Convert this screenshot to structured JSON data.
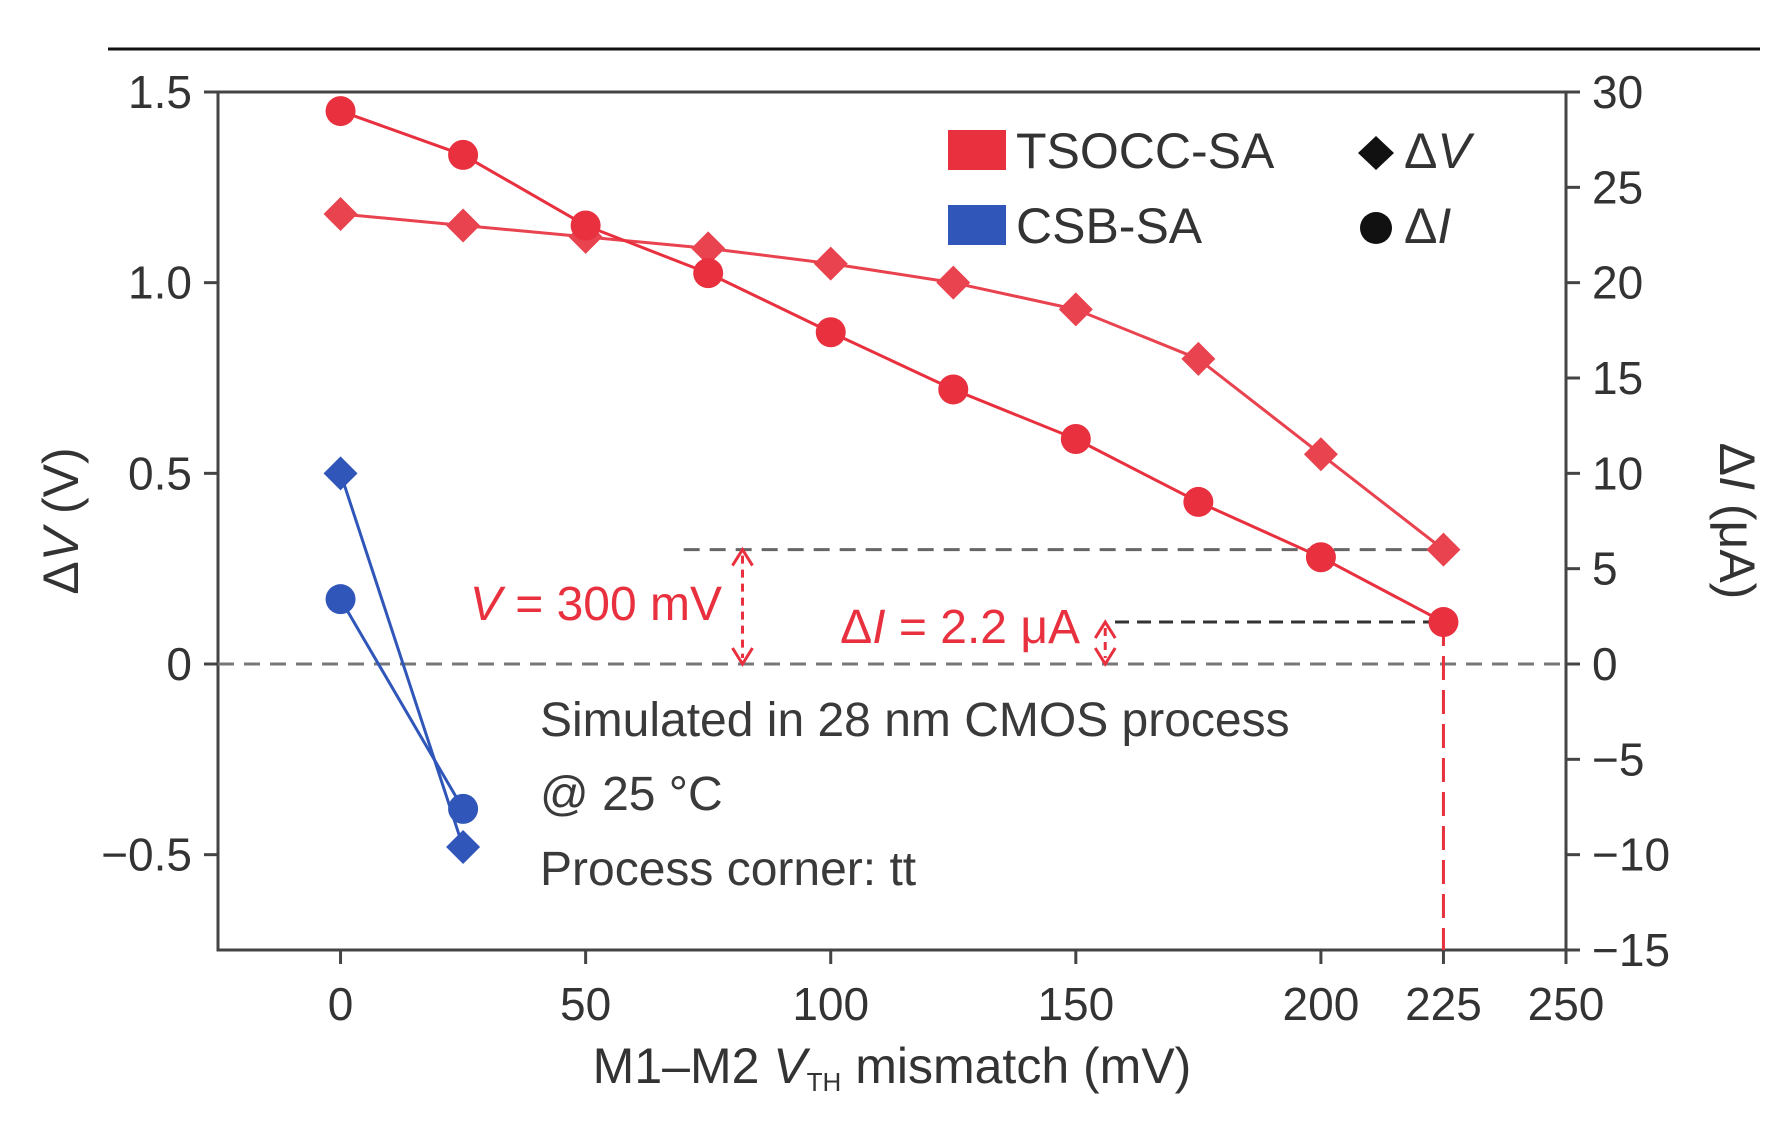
{
  "chart_data": {
    "type": "line",
    "xlabel": {
      "prefix": "M1–M2 ",
      "var": "V",
      "sub": "TH",
      "suffix": " mismatch (mV)"
    },
    "ylabel_left": {
      "prefix": "Δ",
      "var": "V",
      "suffix": " (V)"
    },
    "ylabel_right": {
      "prefix": "Δ",
      "var": "I",
      "suffix": " (μA)"
    },
    "xlim": [
      -25,
      250
    ],
    "ylim_left": [
      -0.75,
      1.5
    ],
    "ylim_right": [
      -15,
      30
    ],
    "x_ticks": [
      0,
      50,
      100,
      150,
      200,
      225,
      250
    ],
    "x_tick_labels": [
      "0",
      "50",
      "100",
      "150",
      "200",
      "225",
      "250"
    ],
    "y_left_ticks": [
      -0.5,
      0,
      0.5,
      1.0,
      1.5
    ],
    "y_left_tick_labels": [
      "−0.5",
      "0",
      "0.5",
      "1.0",
      "1.5"
    ],
    "y_right_ticks": [
      -15,
      -10,
      -5,
      0,
      5,
      10,
      15,
      20,
      25,
      30
    ],
    "y_right_tick_labels": [
      "−15",
      "−10",
      "−5",
      "0",
      "5",
      "10",
      "15",
      "20",
      "25",
      "30"
    ],
    "series": [
      {
        "name": "TSOCC-SA ΔV",
        "group": "TSOCC-SA",
        "quantity": "ΔV",
        "axis": "left",
        "marker": "diamond",
        "color": "#e8434f",
        "x": [
          0,
          25,
          50,
          75,
          100,
          125,
          150,
          175,
          200,
          225
        ],
        "values": [
          1.18,
          1.15,
          1.12,
          1.09,
          1.05,
          1.0,
          0.93,
          0.8,
          0.55,
          0.3
        ]
      },
      {
        "name": "TSOCC-SA ΔI",
        "group": "TSOCC-SA",
        "quantity": "ΔI",
        "axis": "right",
        "marker": "circle",
        "color": "#e8303e",
        "x": [
          0,
          25,
          50,
          75,
          100,
          125,
          150,
          175,
          200,
          225
        ],
        "values": [
          29.0,
          26.7,
          23.0,
          20.5,
          17.4,
          14.4,
          11.8,
          8.5,
          5.6,
          2.2
        ]
      },
      {
        "name": "CSB-SA ΔV",
        "group": "CSB-SA",
        "quantity": "ΔV",
        "axis": "left",
        "marker": "diamond",
        "color": "#2f56b8",
        "x": [
          0,
          25
        ],
        "values": [
          0.5,
          -0.48
        ]
      },
      {
        "name": "CSB-SA ΔI",
        "group": "CSB-SA",
        "quantity": "ΔI",
        "axis": "right",
        "marker": "circle",
        "color": "#2f56b8",
        "x": [
          0,
          25
        ],
        "values": [
          3.4,
          -7.6
        ]
      }
    ],
    "legend": [
      {
        "label": "TSOCC-SA",
        "color": "#e8303e",
        "kind": "swatch"
      },
      {
        "label": "CSB-SA",
        "color": "#2f56b8",
        "kind": "swatch"
      },
      {
        "label_prefix": "Δ",
        "label_var": "V",
        "color": "#111111",
        "kind": "diamond"
      },
      {
        "label_prefix": "Δ",
        "label_var": "I",
        "color": "#111111",
        "kind": "circle"
      }
    ],
    "legend_position": "top-right",
    "annotations": {
      "v_var": "V",
      "v_text": " = 300 mV",
      "i_prefix": "Δ",
      "i_var": "I",
      "i_text": " = 2.2 μA",
      "v_level": 0.3,
      "i_level": 2.2,
      "v_arrow_x": 82,
      "i_arrow_x": 156,
      "v_ref_from_x": 70,
      "i_ref_from_x": 158,
      "marker_x": 225,
      "color": "#e8303e"
    },
    "notes": [
      "Simulated in 28 nm CMOS process",
      "@ 25 °C",
      "Process corner: tt"
    ]
  }
}
